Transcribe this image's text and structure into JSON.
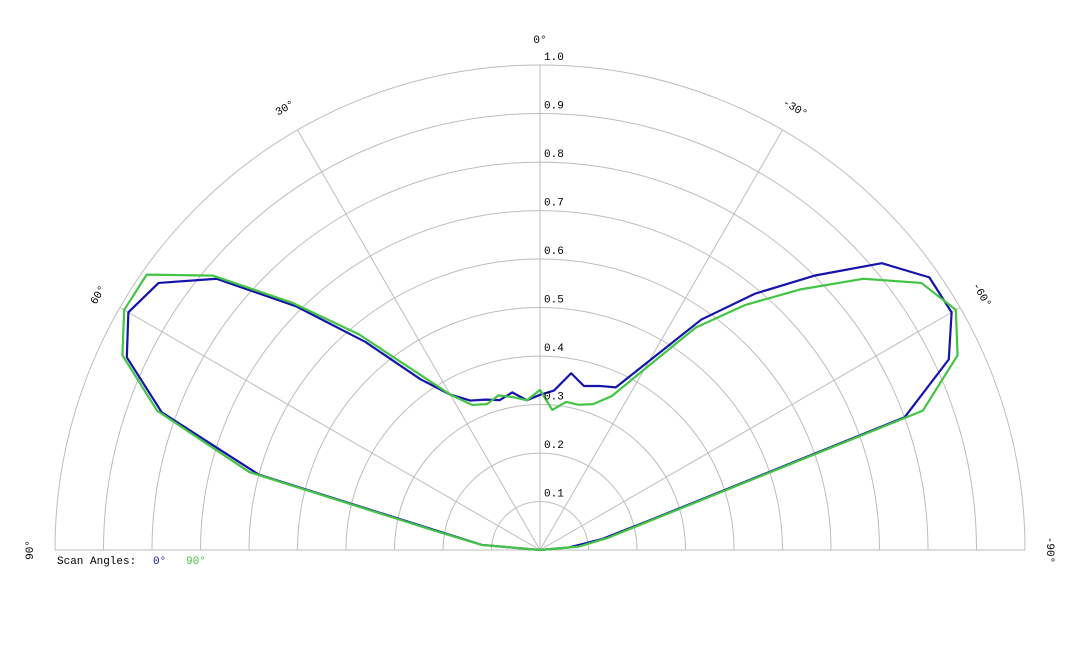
{
  "chart_data": {
    "type": "polar",
    "legend_title": "Scan Angles:",
    "x": [
      90,
      85,
      80,
      75,
      70,
      65,
      60,
      55,
      50,
      45,
      40,
      35,
      30,
      25,
      20,
      15,
      10,
      5,
      0,
      -5,
      -10,
      -15,
      -20,
      -25,
      -30,
      -35,
      -40,
      -45,
      -50,
      -55,
      -60,
      -65,
      -70,
      -75,
      -80,
      -85,
      -90
    ],
    "series": [
      {
        "name": "0°",
        "color": "#1414aa",
        "values": [
          0,
          0.12,
          0.2,
          0.6,
          0.83,
          0.94,
          0.98,
          0.96,
          0.87,
          0.71,
          0.56,
          0.43,
          0.37,
          0.34,
          0.33,
          0.32,
          0.33,
          0.31,
          0.32,
          0.33,
          0.37,
          0.35,
          0.36,
          0.37,
          0.45,
          0.58,
          0.69,
          0.8,
          0.92,
          0.98,
          0.98,
          0.93,
          0.8,
          0.23,
          0.13,
          0.06,
          0
        ]
      },
      {
        "name": "90°",
        "color": "#44c444",
        "values": [
          0,
          0.12,
          0.21,
          0.62,
          0.84,
          0.95,
          0.99,
          0.99,
          0.88,
          0.72,
          0.58,
          0.45,
          0.37,
          0.33,
          0.32,
          0.33,
          0.32,
          0.31,
          0.33,
          0.29,
          0.31,
          0.31,
          0.32,
          0.35,
          0.43,
          0.56,
          0.66,
          0.76,
          0.87,
          0.96,
          0.99,
          0.95,
          0.84,
          0.24,
          0.14,
          0.08,
          0
        ]
      }
    ],
    "rlim": [
      0,
      1
    ],
    "rticks": [
      0.1,
      0.2,
      0.3,
      0.4,
      0.5,
      0.6,
      0.7,
      0.8,
      0.9,
      {
        "value": 1,
        "label": "1.0"
      }
    ],
    "xlim": [
      90,
      -90
    ],
    "xticks": [
      {
        "value": 90,
        "label": "90°"
      },
      {
        "value": 60,
        "label": "60°"
      },
      {
        "value": 30,
        "label": "30°"
      },
      {
        "value": 0,
        "label": "0°"
      },
      {
        "value": -30,
        "label": "-30°"
      },
      {
        "value": -60,
        "label": "-60°"
      },
      {
        "value": -90,
        "label": "-90°"
      }
    ],
    "grid": true
  }
}
